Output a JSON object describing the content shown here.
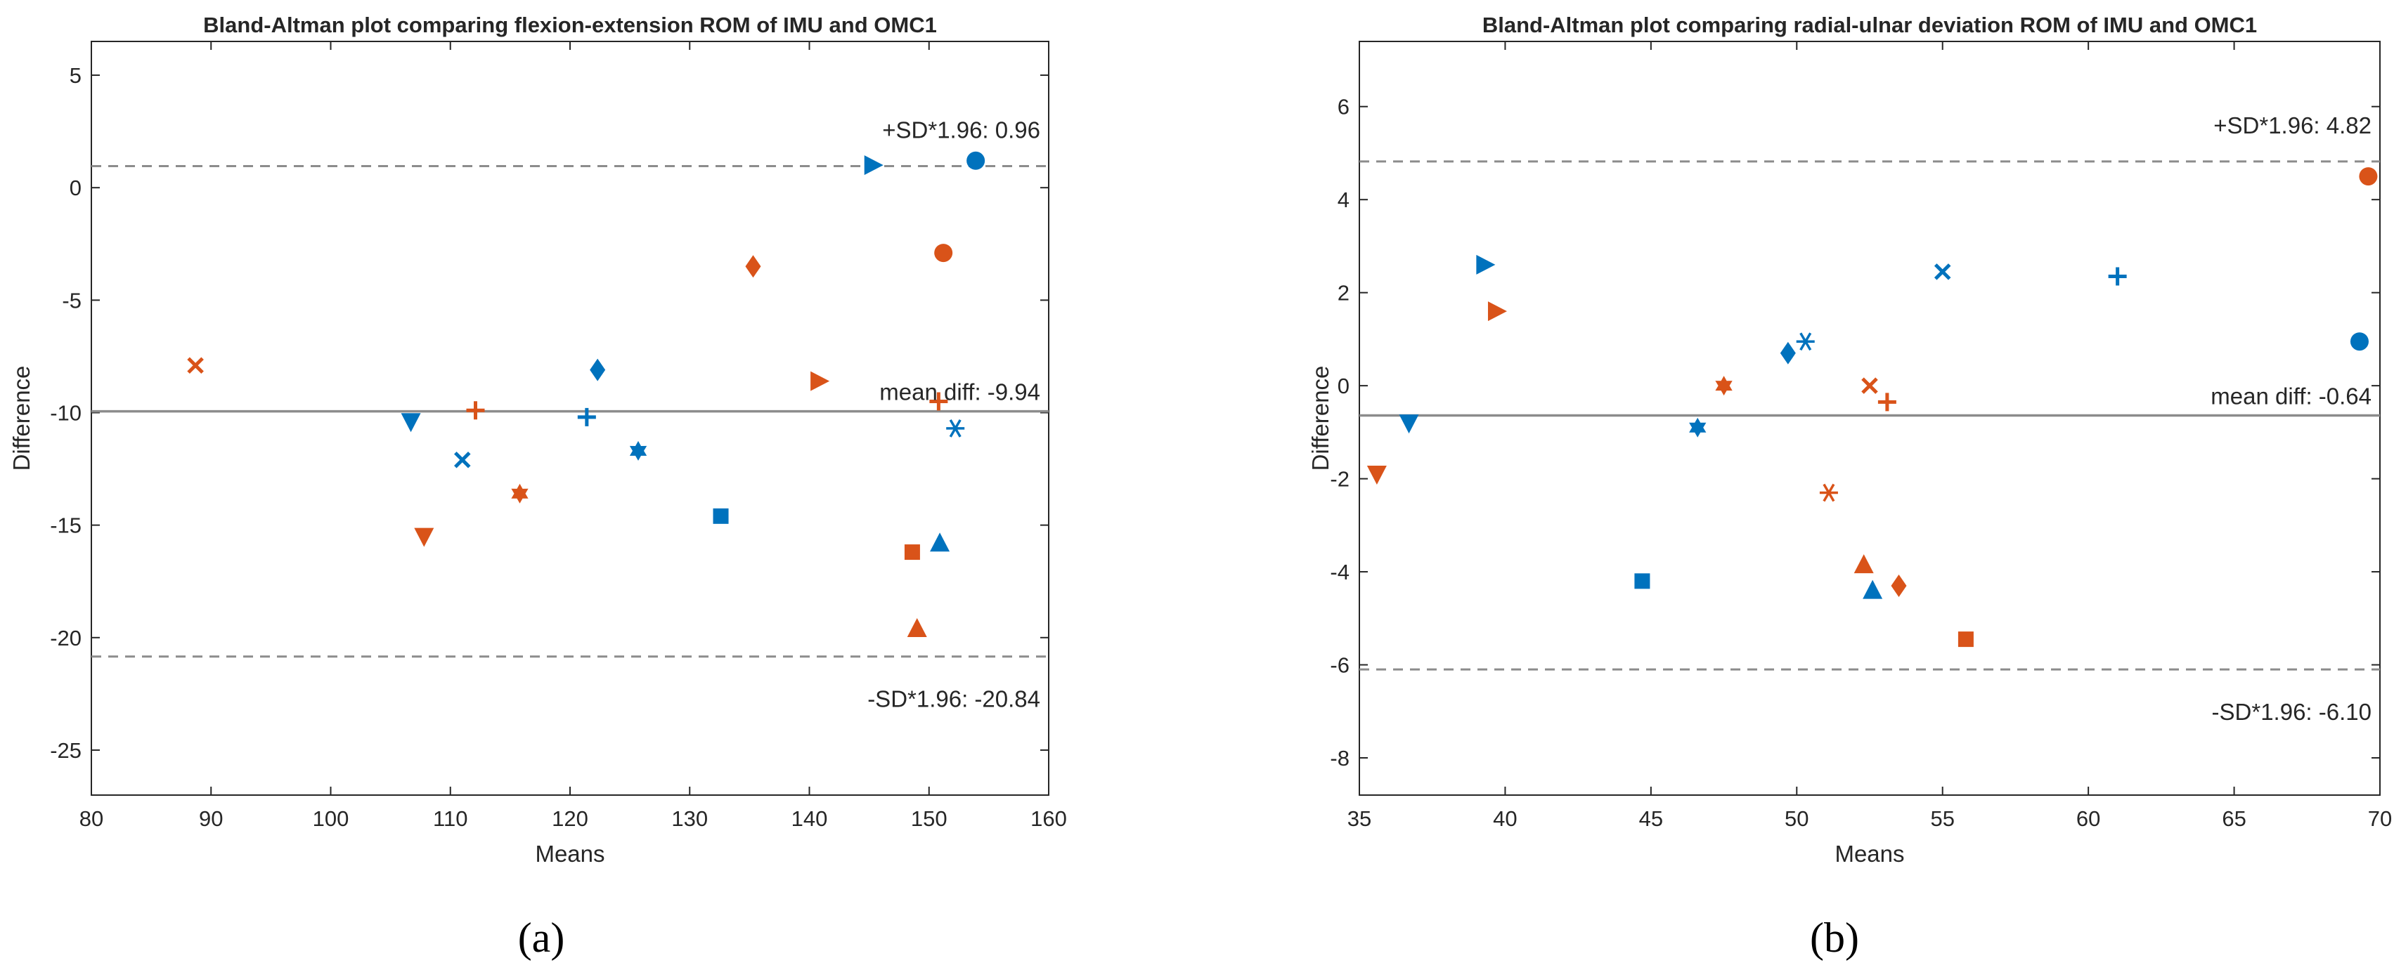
{
  "colors": {
    "blue": "#0072BD",
    "orange": "#D95319",
    "axis": "#262626",
    "mean_line": "#8C8C8C",
    "sd_line": "#8C8C8C"
  },
  "chart_data": [
    {
      "type": "scatter",
      "panel_label": "(a)",
      "title": "Bland-Altman plot comparing flexion-extension ROM of IMU and OMC1",
      "xlabel": "Means",
      "ylabel": "Difference",
      "xlim": [
        80,
        160
      ],
      "ylim": [
        -27,
        6.5
      ],
      "xticks": [
        80,
        90,
        100,
        110,
        120,
        130,
        140,
        150,
        160
      ],
      "yticks": [
        -25,
        -20,
        -15,
        -10,
        -5,
        0,
        5
      ],
      "mean_diff": -9.94,
      "upper_loa": 0.96,
      "lower_loa": -20.84,
      "mean_label": "mean diff: -9.94",
      "upper_label": "+SD*1.96: 0.96",
      "lower_label": "-SD*1.96: -20.84",
      "points": [
        {
          "x": 153.9,
          "y": 1.2,
          "marker": "circle",
          "series": "blue"
        },
        {
          "x": 145.3,
          "y": 1.0,
          "marker": "triangle-right",
          "series": "blue"
        },
        {
          "x": 151.2,
          "y": -2.9,
          "marker": "circle",
          "series": "orange"
        },
        {
          "x": 135.3,
          "y": -3.5,
          "marker": "diamond",
          "series": "orange"
        },
        {
          "x": 88.7,
          "y": -7.9,
          "marker": "x",
          "series": "orange"
        },
        {
          "x": 122.3,
          "y": -8.1,
          "marker": "diamond",
          "series": "blue"
        },
        {
          "x": 140.8,
          "y": -8.6,
          "marker": "triangle-right",
          "series": "orange"
        },
        {
          "x": 150.8,
          "y": -9.5,
          "marker": "plus",
          "series": "orange"
        },
        {
          "x": 112.1,
          "y": -9.9,
          "marker": "plus",
          "series": "orange"
        },
        {
          "x": 121.4,
          "y": -10.2,
          "marker": "plus",
          "series": "blue"
        },
        {
          "x": 106.7,
          "y": -10.4,
          "marker": "triangle-down",
          "series": "blue"
        },
        {
          "x": 152.2,
          "y": -10.7,
          "marker": "asterisk",
          "series": "blue"
        },
        {
          "x": 125.7,
          "y": -11.7,
          "marker": "hexagram",
          "series": "blue"
        },
        {
          "x": 111.0,
          "y": -12.1,
          "marker": "x",
          "series": "blue"
        },
        {
          "x": 115.8,
          "y": -13.6,
          "marker": "hexagram",
          "series": "orange"
        },
        {
          "x": 132.6,
          "y": -14.6,
          "marker": "square",
          "series": "blue"
        },
        {
          "x": 107.8,
          "y": -15.5,
          "marker": "triangle-down",
          "series": "orange"
        },
        {
          "x": 150.9,
          "y": -15.8,
          "marker": "triangle-up",
          "series": "blue"
        },
        {
          "x": 148.6,
          "y": -16.2,
          "marker": "square",
          "series": "orange"
        },
        {
          "x": 149.0,
          "y": -19.6,
          "marker": "triangle-up",
          "series": "orange"
        }
      ]
    },
    {
      "type": "scatter",
      "panel_label": "(b)",
      "title": "Bland-Altman plot comparing radial-ulnar deviation ROM of IMU and OMC1",
      "xlabel": "Means",
      "ylabel": "Difference",
      "xlim": [
        35,
        70
      ],
      "ylim": [
        -8.8,
        7.4
      ],
      "xticks": [
        35,
        40,
        45,
        50,
        55,
        60,
        65,
        70
      ],
      "yticks": [
        -8,
        -6,
        -4,
        -2,
        0,
        2,
        4,
        6
      ],
      "mean_diff": -0.64,
      "upper_loa": 4.82,
      "lower_loa": -6.1,
      "mean_label": "mean diff: -0.64",
      "upper_label": "+SD*1.96: 4.82",
      "lower_label": "-SD*1.96: -6.10",
      "points": [
        {
          "x": 69.6,
          "y": 4.5,
          "marker": "circle",
          "series": "orange"
        },
        {
          "x": 39.3,
          "y": 2.6,
          "marker": "triangle-right",
          "series": "blue"
        },
        {
          "x": 55.0,
          "y": 2.45,
          "marker": "x",
          "series": "blue"
        },
        {
          "x": 61.0,
          "y": 2.35,
          "marker": "plus",
          "series": "blue"
        },
        {
          "x": 39.7,
          "y": 1.6,
          "marker": "triangle-right",
          "series": "orange"
        },
        {
          "x": 69.3,
          "y": 0.95,
          "marker": "circle",
          "series": "blue"
        },
        {
          "x": 50.3,
          "y": 0.95,
          "marker": "asterisk",
          "series": "blue"
        },
        {
          "x": 49.7,
          "y": 0.7,
          "marker": "diamond",
          "series": "blue"
        },
        {
          "x": 47.5,
          "y": 0.0,
          "marker": "hexagram",
          "series": "orange"
        },
        {
          "x": 52.5,
          "y": 0.0,
          "marker": "x",
          "series": "orange"
        },
        {
          "x": 53.1,
          "y": -0.35,
          "marker": "plus",
          "series": "orange"
        },
        {
          "x": 36.7,
          "y": -0.8,
          "marker": "triangle-down",
          "series": "blue"
        },
        {
          "x": 46.6,
          "y": -0.9,
          "marker": "hexagram",
          "series": "blue"
        },
        {
          "x": 35.6,
          "y": -1.9,
          "marker": "triangle-down",
          "series": "orange"
        },
        {
          "x": 51.1,
          "y": -2.3,
          "marker": "asterisk",
          "series": "orange"
        },
        {
          "x": 52.3,
          "y": -3.85,
          "marker": "triangle-up",
          "series": "orange"
        },
        {
          "x": 44.7,
          "y": -4.2,
          "marker": "square",
          "series": "blue"
        },
        {
          "x": 53.5,
          "y": -4.3,
          "marker": "diamond",
          "series": "orange"
        },
        {
          "x": 52.6,
          "y": -4.4,
          "marker": "triangle-up",
          "series": "blue"
        },
        {
          "x": 55.8,
          "y": -5.45,
          "marker": "square",
          "series": "orange"
        }
      ]
    }
  ]
}
